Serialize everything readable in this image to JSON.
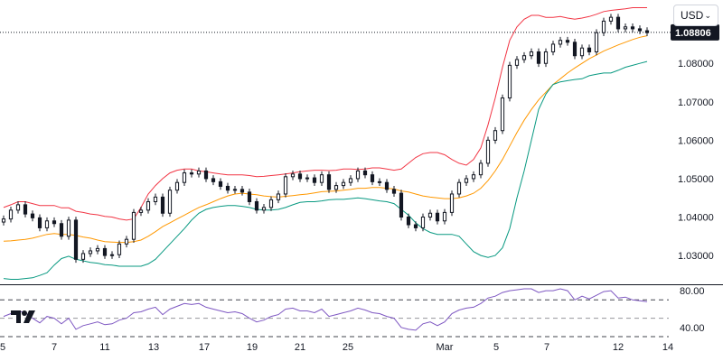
{
  "currency_selector": {
    "label": "USD",
    "icon": "chevron-down-icon"
  },
  "logo": {
    "name": "tradingview-logo",
    "text": "TV"
  },
  "last_price": {
    "label": "1.08806",
    "value": 1.08806,
    "color": "#131722"
  },
  "colors": {
    "upper_band": "#f23645",
    "lower_band": "#089981",
    "basis": "#ff9800",
    "candle": "#131722",
    "rsi_line": "#7e57c2",
    "axis_text": "#131722",
    "grid_dashed": "#131722"
  },
  "chart_data": [
    {
      "type": "candlestick",
      "title": "",
      "overlays": [
        "Bollinger upper band",
        "Bollinger basis",
        "Bollinger lower band"
      ],
      "y_axis": {
        "position": "right",
        "range": [
          1.0225,
          1.0965
        ],
        "ticks": [
          "1.03000",
          "1.04000",
          "1.05000",
          "1.06000",
          "1.07000",
          "1.08000",
          "1.09000"
        ]
      },
      "x_axis": {
        "ticks": [
          "5",
          "7",
          "11",
          "13",
          "17",
          "19",
          "21",
          "25",
          "Mar",
          "5",
          "7",
          "12",
          "14"
        ]
      },
      "close": [
        1.0395,
        1.0418,
        1.0432,
        1.0408,
        1.0398,
        1.0372,
        1.039,
        1.0383,
        1.035,
        1.0392,
        1.029,
        1.0305,
        1.0312,
        1.0318,
        1.03,
        1.0302,
        1.033,
        1.0342,
        1.0412,
        1.0418,
        1.044,
        1.0452,
        1.041,
        1.047,
        1.049,
        1.0515,
        1.0512,
        1.052,
        1.05,
        1.0492,
        1.048,
        1.047,
        1.0472,
        1.0465,
        1.044,
        1.0418,
        1.0425,
        1.0445,
        1.046,
        1.0505,
        1.0512,
        1.05,
        1.0502,
        1.049,
        1.051,
        1.0472,
        1.0482,
        1.049,
        1.05,
        1.052,
        1.051,
        1.0492,
        1.049,
        1.0472,
        1.0462,
        1.04,
        1.038,
        1.0372,
        1.04,
        1.041,
        1.039,
        1.0412,
        1.046,
        1.049,
        1.05,
        1.051,
        1.054,
        1.06,
        1.0625,
        1.071,
        1.0795,
        1.081,
        1.082,
        1.083,
        1.08,
        1.083,
        1.085,
        1.086,
        1.0855,
        1.082,
        1.084,
        1.083,
        1.088,
        1.091,
        1.092,
        1.089,
        1.0895,
        1.089,
        1.0885,
        1.088
      ],
      "bollinger_upper": [
        1.0425,
        1.0432,
        1.044,
        1.044,
        1.0435,
        1.043,
        1.043,
        1.043,
        1.0424,
        1.0424,
        1.0415,
        1.0412,
        1.0408,
        1.0406,
        1.0402,
        1.04,
        1.0395,
        1.0392,
        1.0395,
        1.0425,
        1.046,
        1.0482,
        1.05,
        1.0515,
        1.0522,
        1.0525,
        1.0525,
        1.052,
        1.0518,
        1.0515,
        1.0512,
        1.051,
        1.051,
        1.051,
        1.0508,
        1.0505,
        1.0506,
        1.0508,
        1.051,
        1.0512,
        1.0515,
        1.0518,
        1.052,
        1.0522,
        1.0522,
        1.0521,
        1.0522,
        1.0525,
        1.0525,
        1.0524,
        1.0525,
        1.0528,
        1.0528,
        1.0525,
        1.0522,
        1.0525,
        1.054,
        1.0555,
        1.0565,
        1.0568,
        1.0568,
        1.0562,
        1.055,
        1.054,
        1.0535,
        1.055,
        1.058,
        1.064,
        1.071,
        1.079,
        1.086,
        1.0895,
        1.0915,
        1.0925,
        1.0925,
        1.092,
        1.092,
        1.0922,
        1.0918,
        1.0915,
        1.0918,
        1.0922,
        1.0928,
        1.0935,
        1.0938,
        1.094,
        1.0942,
        1.0945,
        1.0945,
        1.0945
      ],
      "bollinger_basis": [
        1.0337,
        1.0338,
        1.034,
        1.0342,
        1.0345,
        1.035,
        1.0355,
        1.0357,
        1.0355,
        1.0355,
        1.0352,
        1.0348,
        1.0345,
        1.034,
        1.0336,
        1.0335,
        1.0334,
        1.0334,
        1.0336,
        1.034,
        1.035,
        1.0362,
        1.0375,
        1.0385,
        1.0395,
        1.0405,
        1.0415,
        1.0425,
        1.0432,
        1.044,
        1.0448,
        1.0455,
        1.046,
        1.0462,
        1.046,
        1.0458,
        1.0455,
        1.0453,
        1.0452,
        1.0454,
        1.0456,
        1.0458,
        1.046,
        1.0463,
        1.0466,
        1.0467,
        1.0468,
        1.047,
        1.0472,
        1.0475,
        1.0475,
        1.0477,
        1.0477,
        1.0475,
        1.0473,
        1.0468,
        1.0465,
        1.046,
        1.0455,
        1.0452,
        1.045,
        1.0448,
        1.0448,
        1.045,
        1.0455,
        1.0462,
        1.0475,
        1.0495,
        1.052,
        1.055,
        1.0585,
        1.062,
        1.0652,
        1.068,
        1.0705,
        1.0725,
        1.0745,
        1.076,
        1.0775,
        1.0788,
        1.08,
        1.0812,
        1.0822,
        1.0832,
        1.084,
        1.0848,
        1.0855,
        1.0862,
        1.0868,
        1.0872
      ],
      "bollinger_lower": [
        1.024,
        1.0238,
        1.0238,
        1.024,
        1.0242,
        1.0248,
        1.0255,
        1.0275,
        1.0292,
        1.0298,
        1.029,
        1.0286,
        1.0282,
        1.028,
        1.0276,
        1.0275,
        1.0272,
        1.0272,
        1.0272,
        1.0272,
        1.0278,
        1.029,
        1.031,
        1.033,
        1.035,
        1.037,
        1.0392,
        1.041,
        1.042,
        1.0425,
        1.0428,
        1.043,
        1.043,
        1.0428,
        1.0425,
        1.042,
        1.0418,
        1.0418,
        1.042,
        1.0425,
        1.0432,
        1.0438,
        1.044,
        1.044,
        1.0442,
        1.0445,
        1.0446,
        1.0446,
        1.0448,
        1.045,
        1.0448,
        1.0445,
        1.0442,
        1.044,
        1.0435,
        1.042,
        1.0405,
        1.0385,
        1.037,
        1.036,
        1.0355,
        1.0355,
        1.0355,
        1.035,
        1.033,
        1.031,
        1.03,
        1.0295,
        1.03,
        1.032,
        1.037,
        1.045,
        1.052,
        1.06,
        1.068,
        1.072,
        1.0745,
        1.0752,
        1.0755,
        1.0758,
        1.076,
        1.0768,
        1.0772,
        1.0775,
        1.0775,
        1.0782,
        1.079,
        1.0795,
        1.08,
        1.0805
      ]
    },
    {
      "type": "line",
      "name": "RSI",
      "y_axis": {
        "range": [
          31,
          84
        ],
        "ticks": [
          "80.00",
          "40.00"
        ]
      },
      "reference_lines": [
        70,
        50,
        30
      ],
      "values": [
        52,
        55,
        58,
        56,
        50,
        45,
        52,
        50,
        44,
        50,
        38,
        42,
        44,
        46,
        43,
        44,
        48,
        50,
        56,
        57,
        60,
        62,
        54,
        60,
        63,
        66,
        65,
        66,
        62,
        60,
        58,
        56,
        57,
        55,
        50,
        46,
        48,
        52,
        54,
        60,
        61,
        58,
        58,
        56,
        60,
        52,
        54,
        56,
        58,
        61,
        59,
        56,
        55,
        52,
        50,
        40,
        38,
        37,
        44,
        46,
        42,
        46,
        55,
        59,
        61,
        62,
        66,
        72,
        74,
        78,
        80,
        81,
        82,
        82,
        78,
        80,
        80,
        82,
        80,
        70,
        74,
        71,
        75,
        79,
        80,
        72,
        73,
        70,
        69,
        68
      ]
    }
  ]
}
